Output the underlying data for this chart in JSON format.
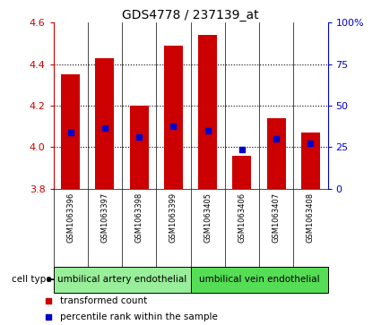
{
  "title": "GDS4778 / 237139_at",
  "samples": [
    "GSM1063396",
    "GSM1063397",
    "GSM1063398",
    "GSM1063399",
    "GSM1063405",
    "GSM1063406",
    "GSM1063407",
    "GSM1063408"
  ],
  "bar_bottom": 3.8,
  "bar_tops": [
    4.35,
    4.43,
    4.2,
    4.49,
    4.54,
    3.96,
    4.14,
    4.07
  ],
  "percentile_values": [
    4.07,
    4.09,
    4.05,
    4.1,
    4.08,
    3.99,
    4.04,
    4.02
  ],
  "ylim_left": [
    3.8,
    4.6
  ],
  "ylim_right": [
    0,
    100
  ],
  "yticks_left": [
    3.8,
    4.0,
    4.2,
    4.4,
    4.6
  ],
  "yticks_right": [
    0,
    25,
    50,
    75,
    100
  ],
  "bar_color": "#cc0000",
  "percentile_color": "#0000cc",
  "cell_types": [
    "umbilical artery endothelial",
    "umbilical vein endothelial"
  ],
  "cell_type_groups": [
    4,
    4
  ],
  "cell_type_color1": "#99ee99",
  "cell_type_color2": "#55dd55",
  "background_color": "#ffffff",
  "tick_label_color_left": "#cc0000",
  "tick_label_color_right": "#0000cc",
  "bar_width": 0.55,
  "legend_red_label": "transformed count",
  "legend_blue_label": "percentile rank within the sample",
  "sample_bg_color": "#cccccc",
  "grid_color": "#000000"
}
